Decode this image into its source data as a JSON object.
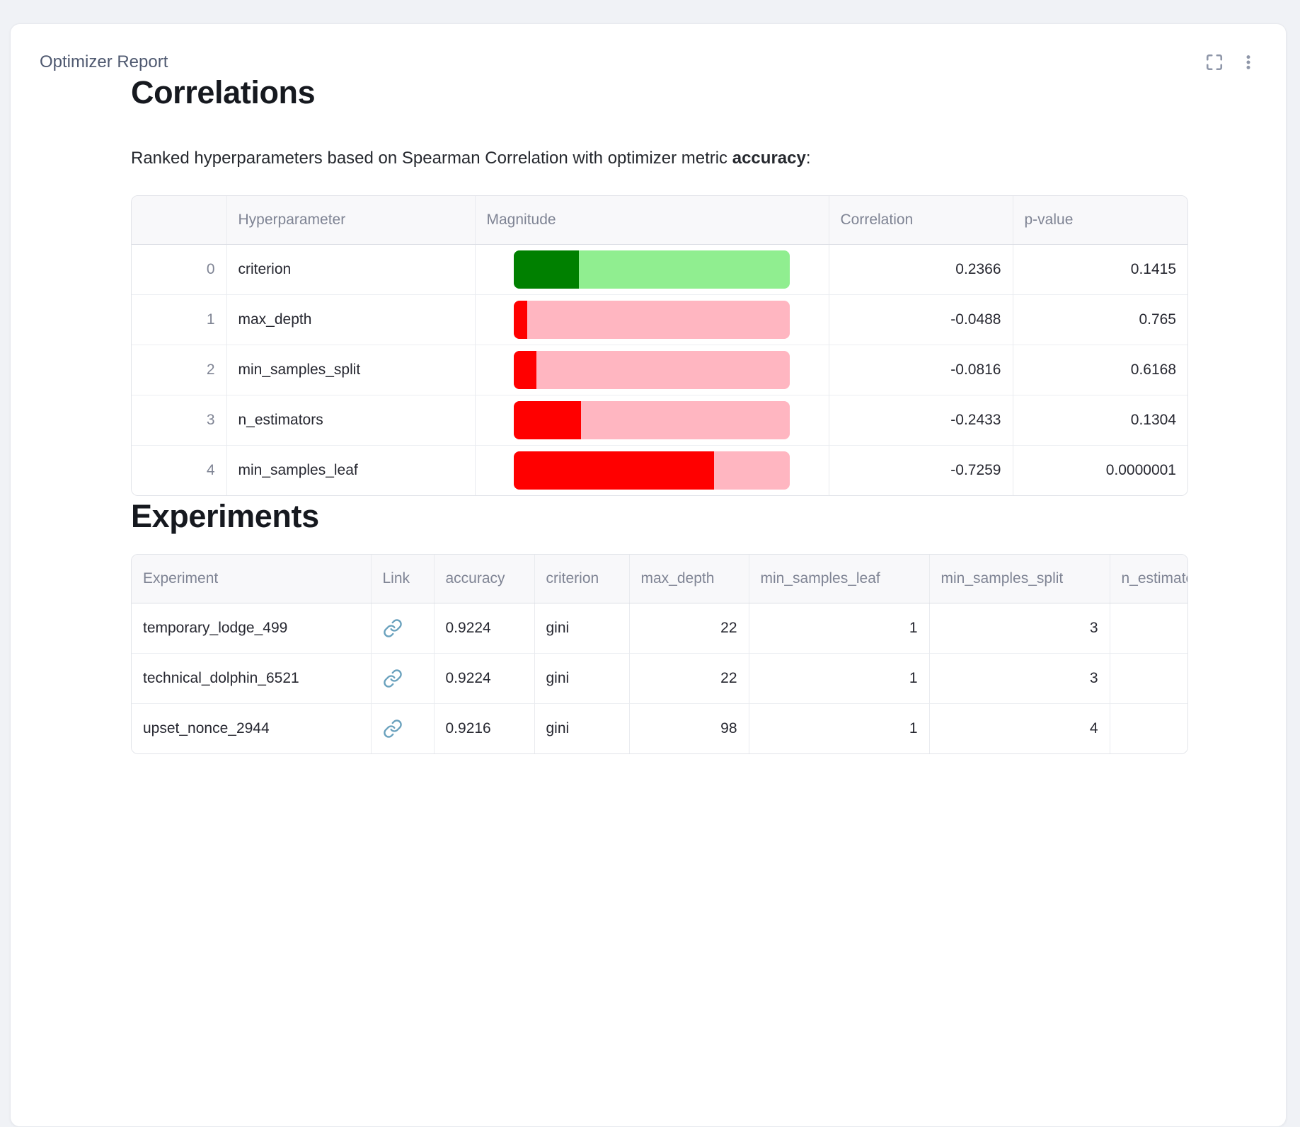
{
  "panel": {
    "title": "Optimizer Report",
    "icons": {
      "maximize": "maximize-icon",
      "menu": "kebab-menu-icon"
    }
  },
  "colors": {
    "page_background": "#f0f2f6",
    "positive_fill": "#008000",
    "positive_track": "#90EE90",
    "negative_fill": "#FF0000",
    "negative_track": "#FFB6C1",
    "link_icon": "#69a1bd"
  },
  "correlations": {
    "heading": "Correlations",
    "subtitle_prefix": "Ranked hyperparameters based on Spearman Correlation with optimizer metric ",
    "metric": "accuracy",
    "subtitle_suffix": ":",
    "columns": [
      "",
      "Hyperparameter",
      "Magnitude",
      "Correlation",
      "p-value"
    ],
    "rows": [
      {
        "index": "0",
        "hyperparameter": "criterion",
        "magnitude_pct": 23.66,
        "direction": "positive",
        "correlation": "0.2366",
        "p_value": "0.1415"
      },
      {
        "index": "1",
        "hyperparameter": "max_depth",
        "magnitude_pct": 4.88,
        "direction": "negative",
        "correlation": "-0.0488",
        "p_value": "0.765"
      },
      {
        "index": "2",
        "hyperparameter": "min_samples_split",
        "magnitude_pct": 8.16,
        "direction": "negative",
        "correlation": "-0.0816",
        "p_value": "0.6168"
      },
      {
        "index": "3",
        "hyperparameter": "n_estimators",
        "magnitude_pct": 24.33,
        "direction": "negative",
        "correlation": "-0.2433",
        "p_value": "0.1304"
      },
      {
        "index": "4",
        "hyperparameter": "min_samples_leaf",
        "magnitude_pct": 72.59,
        "direction": "negative",
        "correlation": "-0.7259",
        "p_value": "0.0000001"
      }
    ]
  },
  "experiments": {
    "heading": "Experiments",
    "columns": [
      "Experiment",
      "Link",
      "accuracy",
      "criterion",
      "max_depth",
      "min_samples_leaf",
      "min_samples_split",
      "n_estimators"
    ],
    "rows": [
      {
        "experiment": "temporary_lodge_499",
        "accuracy": "0.9224",
        "criterion": "gini",
        "max_depth": "22",
        "min_samples_leaf": "1",
        "min_samples_split": "3"
      },
      {
        "experiment": "technical_dolphin_6521",
        "accuracy": "0.9224",
        "criterion": "gini",
        "max_depth": "22",
        "min_samples_leaf": "1",
        "min_samples_split": "3"
      },
      {
        "experiment": "upset_nonce_2944",
        "accuracy": "0.9216",
        "criterion": "gini",
        "max_depth": "98",
        "min_samples_leaf": "1",
        "min_samples_split": "4"
      }
    ]
  }
}
